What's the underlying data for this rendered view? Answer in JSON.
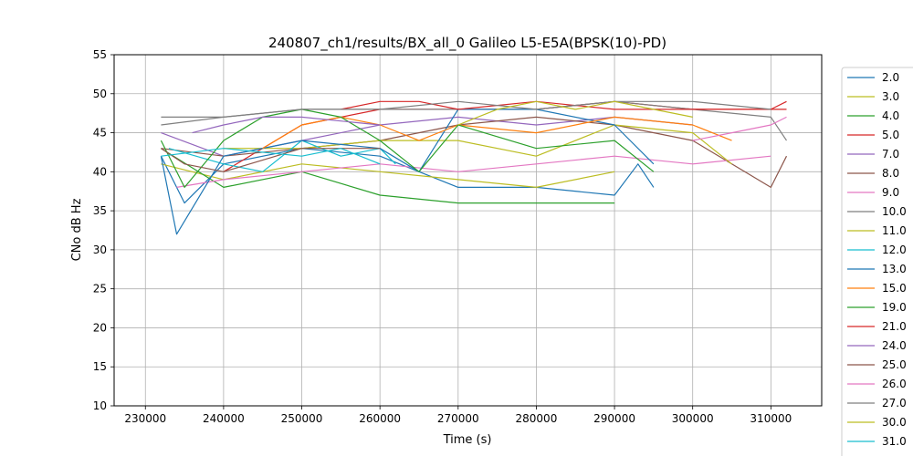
{
  "chart_data": {
    "type": "line",
    "title": "240807_ch1/results/BX_all_0 Galileo L5-E5A(BPSK(10)-PD)",
    "xlabel": "Time (s)",
    "ylabel": "CNo dB Hz",
    "xlim": [
      226000,
      316500
    ],
    "ylim": [
      10,
      55
    ],
    "xticks": [
      230000,
      240000,
      250000,
      260000,
      270000,
      280000,
      290000,
      300000,
      310000
    ],
    "xtick_labels": [
      "230000",
      "240000",
      "250000",
      "260000",
      "270000",
      "280000",
      "290000",
      "300000",
      "310000"
    ],
    "yticks": [
      10,
      15,
      20,
      25,
      30,
      35,
      40,
      45,
      50,
      55
    ],
    "ytick_labels": [
      "10",
      "15",
      "20",
      "25",
      "30",
      "35",
      "40",
      "45",
      "50",
      "55"
    ],
    "grid": true,
    "legend_position": "right (outside, clipped)",
    "series": [
      {
        "name": "2.0",
        "color": "#1f77b4",
        "x": [
          232000,
          235000,
          240000,
          250000,
          260000,
          270000,
          280000,
          290000,
          293000,
          295000
        ],
        "y": [
          42,
          36,
          41,
          43,
          42,
          38,
          38,
          37,
          41,
          38
        ]
      },
      {
        "name": "3.0",
        "color": "#bcbd22",
        "x": [
          232000,
          240000,
          250000,
          260000,
          270000,
          280000,
          290000
        ],
        "y": [
          41,
          39,
          41,
          40,
          39,
          38,
          40
        ]
      },
      {
        "name": "4.0",
        "color": "#2ca02c",
        "x": [
          232000,
          240000,
          250000,
          260000,
          270000,
          280000,
          290000
        ],
        "y": [
          43,
          38,
          40,
          37,
          36,
          36,
          36
        ]
      },
      {
        "name": "5.0",
        "color": "#d62728",
        "x": [
          240000,
          250000,
          260000,
          270000,
          280000,
          290000,
          300000,
          312000
        ],
        "y": [
          40,
          46,
          48,
          48,
          48,
          49,
          48,
          48
        ]
      },
      {
        "name": "7.0",
        "color": "#9467bd",
        "x": [
          232000,
          240000,
          250000,
          260000,
          270000,
          280000,
          290000,
          300000
        ],
        "y": [
          45,
          42,
          44,
          46,
          47,
          46,
          47,
          46
        ]
      },
      {
        "name": "8.0",
        "color": "#8c564b",
        "x": [
          232000,
          240000,
          250000,
          260000,
          270000,
          280000,
          290000,
          300000,
          310000,
          312000
        ],
        "y": [
          43,
          42,
          43,
          44,
          46,
          47,
          46,
          44,
          38,
          42
        ]
      },
      {
        "name": "9.0",
        "color": "#e377c2",
        "x": [
          234000,
          240000,
          250000,
          260000,
          270000,
          280000,
          290000,
          300000,
          310000
        ],
        "y": [
          38,
          39,
          40,
          41,
          40,
          41,
          42,
          41,
          42
        ]
      },
      {
        "name": "10.0",
        "color": "#7f7f7f",
        "x": [
          232000,
          240000,
          250000,
          260000,
          270000,
          280000,
          290000,
          300000,
          310000,
          312000
        ],
        "y": [
          47,
          47,
          48,
          48,
          48,
          48,
          49,
          48,
          47,
          44
        ]
      },
      {
        "name": "11.0",
        "color": "#bcbd22",
        "x": [
          240000,
          250000,
          260000,
          270000,
          280000,
          290000,
          300000,
          305000
        ],
        "y": [
          43,
          43,
          44,
          44,
          42,
          46,
          45,
          41
        ]
      },
      {
        "name": "12.0",
        "color": "#17becf",
        "x": [
          233000,
          240000,
          245000,
          250000,
          255000,
          260000,
          262000
        ],
        "y": [
          43,
          41,
          40,
          44,
          42,
          43,
          41
        ]
      },
      {
        "name": "13.0",
        "color": "#1f77b4",
        "x": [
          232000,
          234000,
          240000,
          250000,
          260000,
          265000,
          270000,
          280000,
          290000,
          295000
        ],
        "y": [
          42,
          32,
          42,
          44,
          43,
          40,
          48,
          48,
          46,
          41
        ]
      },
      {
        "name": "15.0",
        "color": "#ff7f0e",
        "x": [
          245000,
          250000,
          255000,
          260000,
          265000,
          270000,
          280000,
          290000,
          300000,
          305000
        ],
        "y": [
          43,
          46,
          47,
          46,
          44,
          46,
          45,
          47,
          46,
          44
        ]
      },
      {
        "name": "19.0",
        "color": "#2ca02c",
        "x": [
          232000,
          235000,
          240000,
          245000,
          250000,
          255000,
          260000,
          265000,
          270000,
          280000,
          290000,
          295000
        ],
        "y": [
          44,
          38,
          44,
          47,
          48,
          47,
          44,
          40,
          46,
          43,
          44,
          40
        ]
      },
      {
        "name": "21.0",
        "color": "#d62728",
        "x": [
          255000,
          260000,
          265000,
          270000,
          280000,
          290000,
          300000,
          310000,
          312000
        ],
        "y": [
          48,
          49,
          49,
          48,
          49,
          48,
          48,
          48,
          49
        ]
      },
      {
        "name": "24.0",
        "color": "#9467bd",
        "x": [
          236000,
          240000,
          245000,
          250000,
          260000
        ],
        "y": [
          45,
          46,
          47,
          47,
          46
        ]
      },
      {
        "name": "25.0",
        "color": "#8c564b",
        "x": [
          232000,
          235000,
          240000,
          250000,
          260000
        ],
        "y": [
          43,
          41,
          40,
          43,
          43
        ]
      },
      {
        "name": "26.0",
        "color": "#e377c2",
        "x": [
          300000,
          305000,
          310000,
          312000
        ],
        "y": [
          44,
          45,
          46,
          47
        ]
      },
      {
        "name": "27.0",
        "color": "#7f7f7f",
        "x": [
          232000,
          240000,
          250000,
          260000,
          270000,
          280000,
          290000,
          300000,
          310000
        ],
        "y": [
          46,
          47,
          48,
          48,
          49,
          48,
          49,
          49,
          48
        ]
      },
      {
        "name": "30.0",
        "color": "#bcbd22",
        "x": [
          270000,
          275000,
          280000,
          285000,
          290000,
          295000,
          300000
        ],
        "y": [
          46,
          48,
          49,
          48,
          49,
          48,
          47
        ]
      },
      {
        "name": "31.0",
        "color": "#17becf",
        "x": [
          232000,
          240000,
          250000,
          255000,
          260000
        ],
        "y": [
          42,
          43,
          42,
          43,
          41
        ]
      }
    ]
  }
}
